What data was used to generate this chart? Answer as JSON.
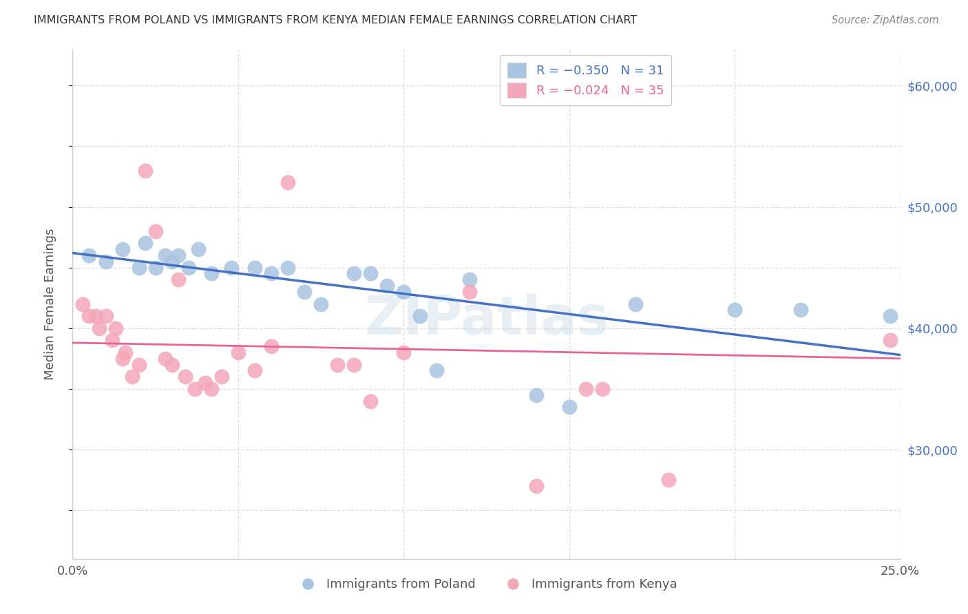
{
  "title": "IMMIGRANTS FROM POLAND VS IMMIGRANTS FROM KENYA MEDIAN FEMALE EARNINGS CORRELATION CHART",
  "source": "Source: ZipAtlas.com",
  "ylabel": "Median Female Earnings",
  "xlim": [
    0.0,
    0.25
  ],
  "ylim": [
    21000,
    63000
  ],
  "poland_color": "#a8c4e0",
  "kenya_color": "#f4a7b9",
  "poland_line_color": "#4472c4",
  "kenya_line_color": "#e8639a",
  "watermark": "ZIPatlas",
  "poland_scatter_x": [
    0.005,
    0.01,
    0.015,
    0.02,
    0.022,
    0.025,
    0.028,
    0.03,
    0.032,
    0.035,
    0.038,
    0.042,
    0.048,
    0.055,
    0.06,
    0.065,
    0.07,
    0.075,
    0.085,
    0.09,
    0.095,
    0.1,
    0.105,
    0.11,
    0.12,
    0.14,
    0.15,
    0.17,
    0.2,
    0.22,
    0.247
  ],
  "poland_scatter_y": [
    46000,
    45500,
    46500,
    45000,
    47000,
    45000,
    46000,
    45500,
    46000,
    45000,
    46500,
    44500,
    45000,
    45000,
    44500,
    45000,
    43000,
    42000,
    44500,
    44500,
    43500,
    43000,
    41000,
    36500,
    44000,
    34500,
    33500,
    42000,
    41500,
    41500,
    41000
  ],
  "kenya_scatter_x": [
    0.003,
    0.005,
    0.007,
    0.008,
    0.01,
    0.012,
    0.013,
    0.015,
    0.016,
    0.018,
    0.02,
    0.022,
    0.025,
    0.028,
    0.03,
    0.032,
    0.034,
    0.037,
    0.04,
    0.042,
    0.045,
    0.05,
    0.055,
    0.06,
    0.065,
    0.08,
    0.085,
    0.09,
    0.1,
    0.12,
    0.14,
    0.155,
    0.16,
    0.18,
    0.247
  ],
  "kenya_scatter_y": [
    42000,
    41000,
    41000,
    40000,
    41000,
    39000,
    40000,
    37500,
    38000,
    36000,
    37000,
    53000,
    48000,
    37500,
    37000,
    44000,
    36000,
    35000,
    35500,
    35000,
    36000,
    38000,
    36500,
    38500,
    52000,
    37000,
    37000,
    34000,
    38000,
    43000,
    27000,
    35000,
    35000,
    27500,
    39000
  ],
  "poland_trendline_x": [
    0.0,
    0.25
  ],
  "poland_trendline_y": [
    46200,
    37800
  ],
  "kenya_trendline_x": [
    0.0,
    0.25
  ],
  "kenya_trendline_y": [
    38800,
    37500
  ],
  "xtick_positions": [
    0.0,
    0.05,
    0.1,
    0.15,
    0.2,
    0.25
  ],
  "xtick_labels": [
    "0.0%",
    "",
    "",
    "",
    "",
    "25.0%"
  ],
  "ytick_positions": [
    25000,
    30000,
    35000,
    40000,
    45000,
    50000,
    55000,
    60000
  ],
  "ytick_labels_right": [
    "",
    "$30,000",
    "",
    "$40,000",
    "",
    "$50,000",
    "",
    "$60,000"
  ],
  "bottom_legend_poland": "Immigrants from Poland",
  "bottom_legend_kenya": "Immigrants from Kenya"
}
